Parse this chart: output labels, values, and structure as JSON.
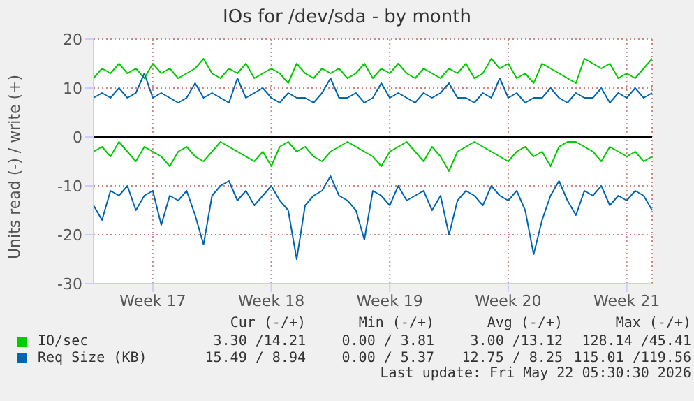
{
  "chart_data": {
    "type": "line",
    "title": "IOs for /dev/sda - by month",
    "ylabel": "Units read (-) / write (+)",
    "categories": [
      null,
      null,
      null,
      null,
      null,
      null,
      null,
      "Week 17",
      null,
      null,
      null,
      null,
      null,
      null,
      null,
      null,
      null,
      null,
      null,
      null,
      null,
      "Week 18",
      null,
      null,
      null,
      null,
      null,
      null,
      null,
      null,
      null,
      null,
      null,
      null,
      null,
      "Week 19",
      null,
      null,
      null,
      null,
      null,
      null,
      null,
      null,
      null,
      null,
      null,
      null,
      null,
      "Week 20",
      null,
      null,
      null,
      null,
      null,
      null,
      null,
      null,
      null,
      null,
      null,
      null,
      null,
      "Week 21",
      null,
      null,
      null
    ],
    "series": [
      {
        "name": "IO/sec",
        "color": "#00cc00",
        "values": [
          12,
          14,
          13,
          15,
          13,
          14,
          12,
          15,
          13,
          14,
          12,
          13,
          14,
          16,
          13,
          12,
          14,
          13,
          15,
          12,
          13,
          14,
          13,
          11,
          15,
          13,
          12,
          14,
          13,
          14,
          12,
          13,
          15,
          12,
          14,
          13,
          15,
          13,
          12,
          14,
          13,
          12,
          14,
          13,
          15,
          12,
          13,
          16,
          14,
          15,
          12,
          13,
          11,
          15,
          14,
          13,
          12,
          11,
          16,
          15,
          14,
          15,
          12,
          13,
          12,
          14,
          16
        ]
      },
      {
        "name": "Req Size (KB)",
        "color": "#0066b3",
        "values": [
          8,
          9,
          8,
          10,
          8,
          9,
          13,
          8,
          9,
          8,
          7,
          8,
          11,
          8,
          9,
          8,
          7,
          12,
          8,
          9,
          10,
          8,
          7,
          9,
          8,
          8,
          7,
          9,
          12,
          8,
          8,
          9,
          7,
          8,
          11,
          8,
          9,
          8,
          7,
          9,
          8,
          9,
          11,
          8,
          8,
          7,
          9,
          8,
          12,
          8,
          9,
          7,
          8,
          8,
          10,
          8,
          7,
          9,
          8,
          8,
          10,
          7,
          9,
          8,
          10,
          8,
          9
        ]
      },
      {
        "color": "#00cc00",
        "values": [
          -3,
          -2,
          -4,
          -1,
          -3,
          -5,
          -2,
          -3,
          -4,
          -6,
          -3,
          -2,
          -4,
          -5,
          -3,
          -1,
          -2,
          -3,
          -4,
          -5,
          -3,
          -6,
          -2,
          -1,
          -3,
          -2,
          -4,
          -5,
          -3,
          -2,
          -1,
          -2,
          -3,
          -4,
          -6,
          -3,
          -2,
          -1,
          -3,
          -5,
          -2,
          -4,
          -7,
          -3,
          -2,
          -1,
          -2,
          -3,
          -4,
          -5,
          -3,
          -2,
          -4,
          -3,
          -6,
          -2,
          -1,
          -1,
          -2,
          -3,
          -5,
          -2,
          -3,
          -4,
          -3,
          -5,
          -4
        ]
      },
      {
        "color": "#0066b3",
        "values": [
          -14,
          -17,
          -11,
          -12,
          -10,
          -15,
          -12,
          -11,
          -18,
          -12,
          -13,
          -11,
          -16,
          -22,
          -12,
          -10,
          -9,
          -13,
          -11,
          -14,
          -12,
          -10,
          -13,
          -15,
          -25,
          -14,
          -12,
          -11,
          -8,
          -12,
          -13,
          -15,
          -21,
          -11,
          -12,
          -14,
          -10,
          -13,
          -12,
          -11,
          -15,
          -12,
          -20,
          -13,
          -11,
          -12,
          -14,
          -10,
          -12,
          -13,
          -11,
          -15,
          -24,
          -17,
          -12,
          -9,
          -13,
          -16,
          -11,
          -12,
          -10,
          -14,
          -12,
          -13,
          -11,
          -12,
          -15
        ]
      }
    ],
    "ylim": [
      -30,
      20
    ],
    "yticks": [
      -30,
      -20,
      -10,
      0,
      10,
      20
    ],
    "ref_lines": [
      {
        "axis": "y",
        "value": 0,
        "color": "#000000"
      }
    ],
    "grid": true,
    "legend": "bottom",
    "marker": "none",
    "line_style": "solid",
    "annotations": [
      "Cur (-/+)",
      "Min (-/+)",
      "Avg (-/+)",
      "Max (-/+)",
      "3.30 /14.21",
      "0.00 / 3.81",
      "3.00 /13.12",
      "128.14 /45.41",
      "15.49 / 8.94",
      "0.00 / 5.37",
      "12.75 / 8.25",
      "115.01 /119.56",
      "Last update: Fri May 22 05:30:30 2026"
    ]
  }
}
